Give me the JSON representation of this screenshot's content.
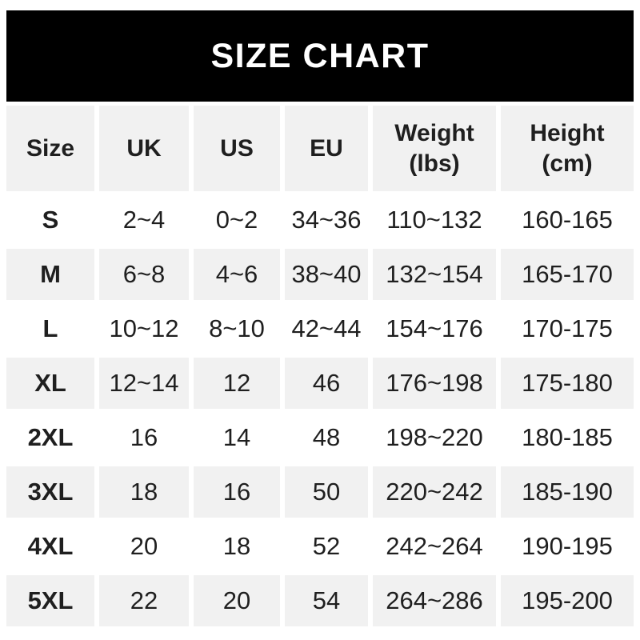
{
  "banner": {
    "title": "SIZE CHART"
  },
  "colors": {
    "banner_bg": "#000000",
    "banner_text": "#ffffff",
    "cell_shaded_bg": "#f1f1f1",
    "cell_plain_bg": "#ffffff",
    "text": "#1f1f1f"
  },
  "headers": [
    {
      "line1": "Size"
    },
    {
      "line1": "UK"
    },
    {
      "line1": "US"
    },
    {
      "line1": "EU"
    },
    {
      "line1": "Weight",
      "line2": "(lbs)"
    },
    {
      "line1": "Height",
      "line2": "(cm)"
    }
  ],
  "chart_data": {
    "type": "table",
    "title": "SIZE CHART",
    "columns": [
      "Size",
      "UK",
      "US",
      "EU",
      "Weight (lbs)",
      "Height (cm)"
    ],
    "rows": [
      [
        "S",
        "2~4",
        "0~2",
        "34~36",
        "110~132",
        "160-165"
      ],
      [
        "M",
        "6~8",
        "4~6",
        "38~40",
        "132~154",
        "165-170"
      ],
      [
        "L",
        "10~12",
        "8~10",
        "42~44",
        "154~176",
        "170-175"
      ],
      [
        "XL",
        "12~14",
        "12",
        "46",
        "176~198",
        "175-180"
      ],
      [
        "2XL",
        "16",
        "14",
        "48",
        "198~220",
        "180-185"
      ],
      [
        "3XL",
        "18",
        "16",
        "50",
        "220~242",
        "185-190"
      ],
      [
        "4XL",
        "20",
        "18",
        "52",
        "242~264",
        "190-195"
      ],
      [
        "5XL",
        "22",
        "20",
        "54",
        "264~286",
        "195-200"
      ]
    ]
  }
}
